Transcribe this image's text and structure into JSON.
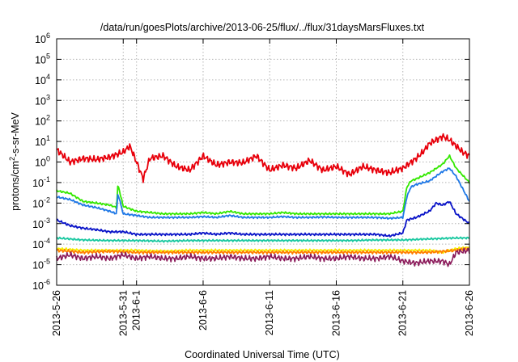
{
  "chart_data": {
    "type": "line",
    "title": "/data/run/goesPlots/archive/2013-06-25/flux/../flux/31daysMarsFluxes.txt",
    "xlabel": "Coordinated Universal Time (UTC)",
    "ylabel": {
      "pre": "protons/cm",
      "sup": "2",
      "post": "-s-sr-MeV"
    },
    "xlim": [
      "2013-05-26",
      "2013-06-26"
    ],
    "ylim": [
      1e-06,
      1000000.0
    ],
    "yscale": "log",
    "grid": true,
    "x_ticks": [
      "2013-5-26",
      "2013-5-31",
      "2013-6-1",
      "2013-6-6",
      "2013-6-11",
      "2013-6-16",
      "2013-6-21",
      "2013-6-26"
    ],
    "x_tick_days": [
      0,
      5,
      6,
      11,
      16,
      21,
      26,
      31
    ],
    "y_ticks": [
      {
        "base": "10",
        "exp": "-6"
      },
      {
        "base": "10",
        "exp": "-5"
      },
      {
        "base": "10",
        "exp": "-4"
      },
      {
        "base": "10",
        "exp": "-3"
      },
      {
        "base": "10",
        "exp": "-2"
      },
      {
        "base": "10",
        "exp": "-1"
      },
      {
        "base": "10",
        "exp": "0"
      },
      {
        "base": "10",
        "exp": "1"
      },
      {
        "base": "10",
        "exp": "2"
      },
      {
        "base": "10",
        "exp": "3"
      },
      {
        "base": "10",
        "exp": "4"
      },
      {
        "base": "10",
        "exp": "5"
      },
      {
        "base": "10",
        "exp": "6"
      }
    ],
    "series": [
      {
        "color": "#e8000b",
        "x": [
          0,
          1,
          2,
          3,
          4,
          5,
          5.5,
          6,
          6.5,
          7,
          8,
          9,
          10,
          11,
          12,
          13,
          14,
          15,
          16,
          17,
          18,
          19,
          20,
          21,
          22,
          23,
          24,
          25,
          26,
          27,
          27.5,
          28,
          28.5,
          29,
          29.5,
          30,
          30.5,
          31
        ],
        "y": [
          4,
          1,
          1.5,
          1.3,
          1.8,
          3,
          6,
          1,
          0.15,
          1.5,
          2,
          0.6,
          0.4,
          2,
          0.7,
          1,
          0.9,
          2,
          0.4,
          0.7,
          0.5,
          1.2,
          0.4,
          0.6,
          0.25,
          0.6,
          0.4,
          0.3,
          0.5,
          1.5,
          3,
          8,
          12,
          18,
          12,
          6,
          3,
          2
        ]
      },
      {
        "color": "#33e800",
        "x": [
          0,
          1,
          2,
          3,
          4,
          4.5,
          4.6,
          5,
          6,
          7,
          8,
          9,
          10,
          11,
          12,
          13,
          14,
          15,
          16,
          17,
          18,
          19,
          20,
          21,
          22,
          23,
          24,
          25,
          26,
          26.3,
          26.6,
          27,
          28,
          29,
          29.5,
          30,
          31
        ],
        "y": [
          0.04,
          0.03,
          0.012,
          0.01,
          0.008,
          0.006,
          0.08,
          0.007,
          0.004,
          0.0035,
          0.003,
          0.003,
          0.003,
          0.0035,
          0.003,
          0.004,
          0.003,
          0.003,
          0.003,
          0.0035,
          0.003,
          0.003,
          0.003,
          0.003,
          0.003,
          0.003,
          0.003,
          0.003,
          0.004,
          0.06,
          0.12,
          0.15,
          0.3,
          0.8,
          2,
          0.5,
          0.1
        ]
      },
      {
        "color": "#1f78e6",
        "x": [
          0,
          1,
          2,
          3,
          4,
          4.5,
          4.6,
          5,
          6,
          7,
          8,
          9,
          10,
          11,
          12,
          13,
          14,
          15,
          16,
          17,
          18,
          19,
          20,
          21,
          22,
          23,
          24,
          25,
          26,
          26.3,
          26.6,
          27,
          28,
          29,
          29.5,
          30,
          31
        ],
        "y": [
          0.02,
          0.015,
          0.008,
          0.006,
          0.004,
          0.003,
          0.03,
          0.003,
          0.0025,
          0.002,
          0.002,
          0.002,
          0.002,
          0.0022,
          0.002,
          0.0025,
          0.002,
          0.002,
          0.002,
          0.0022,
          0.002,
          0.002,
          0.0021,
          0.002,
          0.002,
          0.002,
          0.002,
          0.0018,
          0.002,
          0.02,
          0.06,
          0.08,
          0.12,
          0.35,
          0.5,
          0.2,
          0.012
        ]
      },
      {
        "color": "#0a14c8",
        "x": [
          0,
          1,
          2,
          3,
          4,
          5,
          6,
          7,
          8,
          9,
          10,
          11,
          12,
          13,
          14,
          15,
          16,
          17,
          18,
          19,
          20,
          21,
          22,
          23,
          24,
          25,
          26,
          26.3,
          27,
          28,
          28.5,
          29,
          29.5,
          30,
          31
        ],
        "y": [
          0.0015,
          0.0008,
          0.0006,
          0.0005,
          0.0004,
          0.0004,
          0.0003,
          0.0003,
          0.0003,
          0.0003,
          0.0003,
          0.00035,
          0.0003,
          0.00035,
          0.0003,
          0.0003,
          0.0003,
          0.0003,
          0.0003,
          0.0003,
          0.0003,
          0.0003,
          0.0003,
          0.0003,
          0.0003,
          0.00025,
          0.00035,
          0.0015,
          0.002,
          0.004,
          0.01,
          0.008,
          0.012,
          0.003,
          0.001
        ]
      },
      {
        "color": "#19c8a0",
        "x": [
          0,
          2,
          4,
          6,
          8,
          10,
          12,
          14,
          16,
          18,
          20,
          22,
          24,
          26,
          28,
          30,
          31
        ],
        "y": [
          0.0002,
          0.00016,
          0.00015,
          0.00015,
          0.00014,
          0.00015,
          0.00015,
          0.00015,
          0.00015,
          0.00015,
          0.00015,
          0.00015,
          0.00016,
          0.00016,
          0.00018,
          0.0002,
          0.0002
        ]
      },
      {
        "color": "#f5f000",
        "x": [
          0,
          2,
          4,
          6,
          8,
          10,
          12,
          14,
          16,
          18,
          20,
          22,
          24,
          26,
          28,
          29,
          30,
          31
        ],
        "y": [
          6e-05,
          5e-05,
          5e-05,
          5e-05,
          4.5e-05,
          5e-05,
          5e-05,
          5e-05,
          5e-05,
          5e-05,
          5e-05,
          5e-05,
          5e-05,
          5e-05,
          5e-05,
          4e-05,
          6e-05,
          7e-05
        ]
      },
      {
        "color": "#ff7f00",
        "x": [
          0,
          2,
          4,
          6,
          8,
          10,
          12,
          14,
          16,
          18,
          20,
          22,
          24,
          26,
          28,
          30,
          31
        ],
        "y": [
          5e-05,
          4e-05,
          4.5e-05,
          4e-05,
          4e-05,
          4e-05,
          4e-05,
          4e-05,
          4e-05,
          4e-05,
          4e-05,
          4e-05,
          4e-05,
          4e-05,
          4e-05,
          5e-05,
          6e-05
        ]
      },
      {
        "color": "#8b1a5a",
        "x": [
          0,
          1,
          2,
          3,
          4,
          5,
          6,
          7,
          8,
          9,
          10,
          11,
          12,
          13,
          14,
          15,
          16,
          17,
          18,
          19,
          20,
          21,
          22,
          23,
          24,
          25,
          26,
          27,
          28,
          29,
          29.5,
          30,
          31
        ],
        "y": [
          2e-05,
          3e-05,
          2e-05,
          2.5e-05,
          2e-05,
          3e-05,
          2e-05,
          2.5e-05,
          2e-05,
          2e-05,
          2.5e-05,
          2e-05,
          2e-05,
          2.5e-05,
          2e-05,
          2e-05,
          2.5e-05,
          2e-05,
          2e-05,
          2.5e-05,
          2e-05,
          2e-05,
          2.5e-05,
          2e-05,
          2e-05,
          2.5e-05,
          1.5e-05,
          1.2e-05,
          1.5e-05,
          1.5e-05,
          1e-05,
          4e-05,
          5e-05
        ]
      }
    ]
  }
}
